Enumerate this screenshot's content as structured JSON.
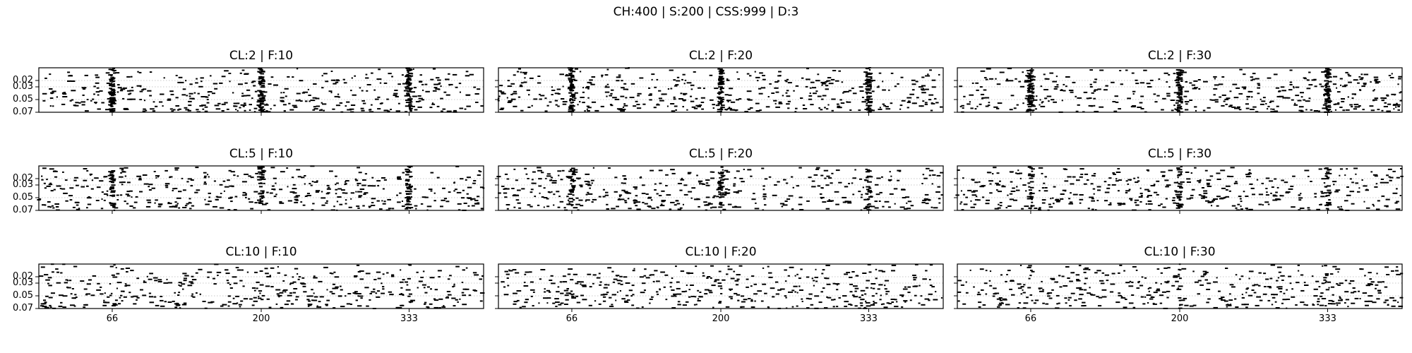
{
  "figure": {
    "title": "CH:400 | S:200 | CSS:999 | D:3"
  },
  "chart_data": {
    "type": "scatter",
    "marker": "horizontal-dash",
    "color": "#000000",
    "grid": "horizontal-dotted",
    "xlim": [
      0,
      400
    ],
    "ylim": [
      0.07,
      0.0
    ],
    "x_ticks": [
      66,
      200,
      333
    ],
    "x_tick_labels": [
      "66",
      "200",
      "333"
    ],
    "y_ticks": [
      0.02,
      0.03,
      0.05,
      0.07
    ],
    "y_tick_labels": [
      "0.02",
      "0.03",
      "0.05",
      "0.07"
    ],
    "rows": [
      {
        "panels": [
          {
            "title": "CL:2 | F:10",
            "cl": 2,
            "f": 10,
            "density": 1.0
          },
          {
            "title": "CL:2 | F:20",
            "cl": 2,
            "f": 20,
            "density": 1.0
          },
          {
            "title": "CL:2 | F:30",
            "cl": 2,
            "f": 30,
            "density": 1.0
          }
        ]
      },
      {
        "panels": [
          {
            "title": "CL:5 | F:10",
            "cl": 5,
            "f": 10,
            "density": 0.6
          },
          {
            "title": "CL:5 | F:20",
            "cl": 5,
            "f": 20,
            "density": 0.5
          },
          {
            "title": "CL:5 | F:30",
            "cl": 5,
            "f": 30,
            "density": 0.45
          }
        ]
      },
      {
        "panels": [
          {
            "title": "CL:10 | F:10",
            "cl": 10,
            "f": 10,
            "density": 0.05
          },
          {
            "title": "CL:10 | F:20",
            "cl": 10,
            "f": 20,
            "density": 0.05
          },
          {
            "title": "CL:10 | F:30",
            "cl": 10,
            "f": 30,
            "density": 0.08
          }
        ]
      }
    ],
    "events": {
      "bursts_x": [
        66,
        200,
        333
      ],
      "background_points_per_panel": 420,
      "burst_points_per_line": 70,
      "seed": 999
    }
  }
}
